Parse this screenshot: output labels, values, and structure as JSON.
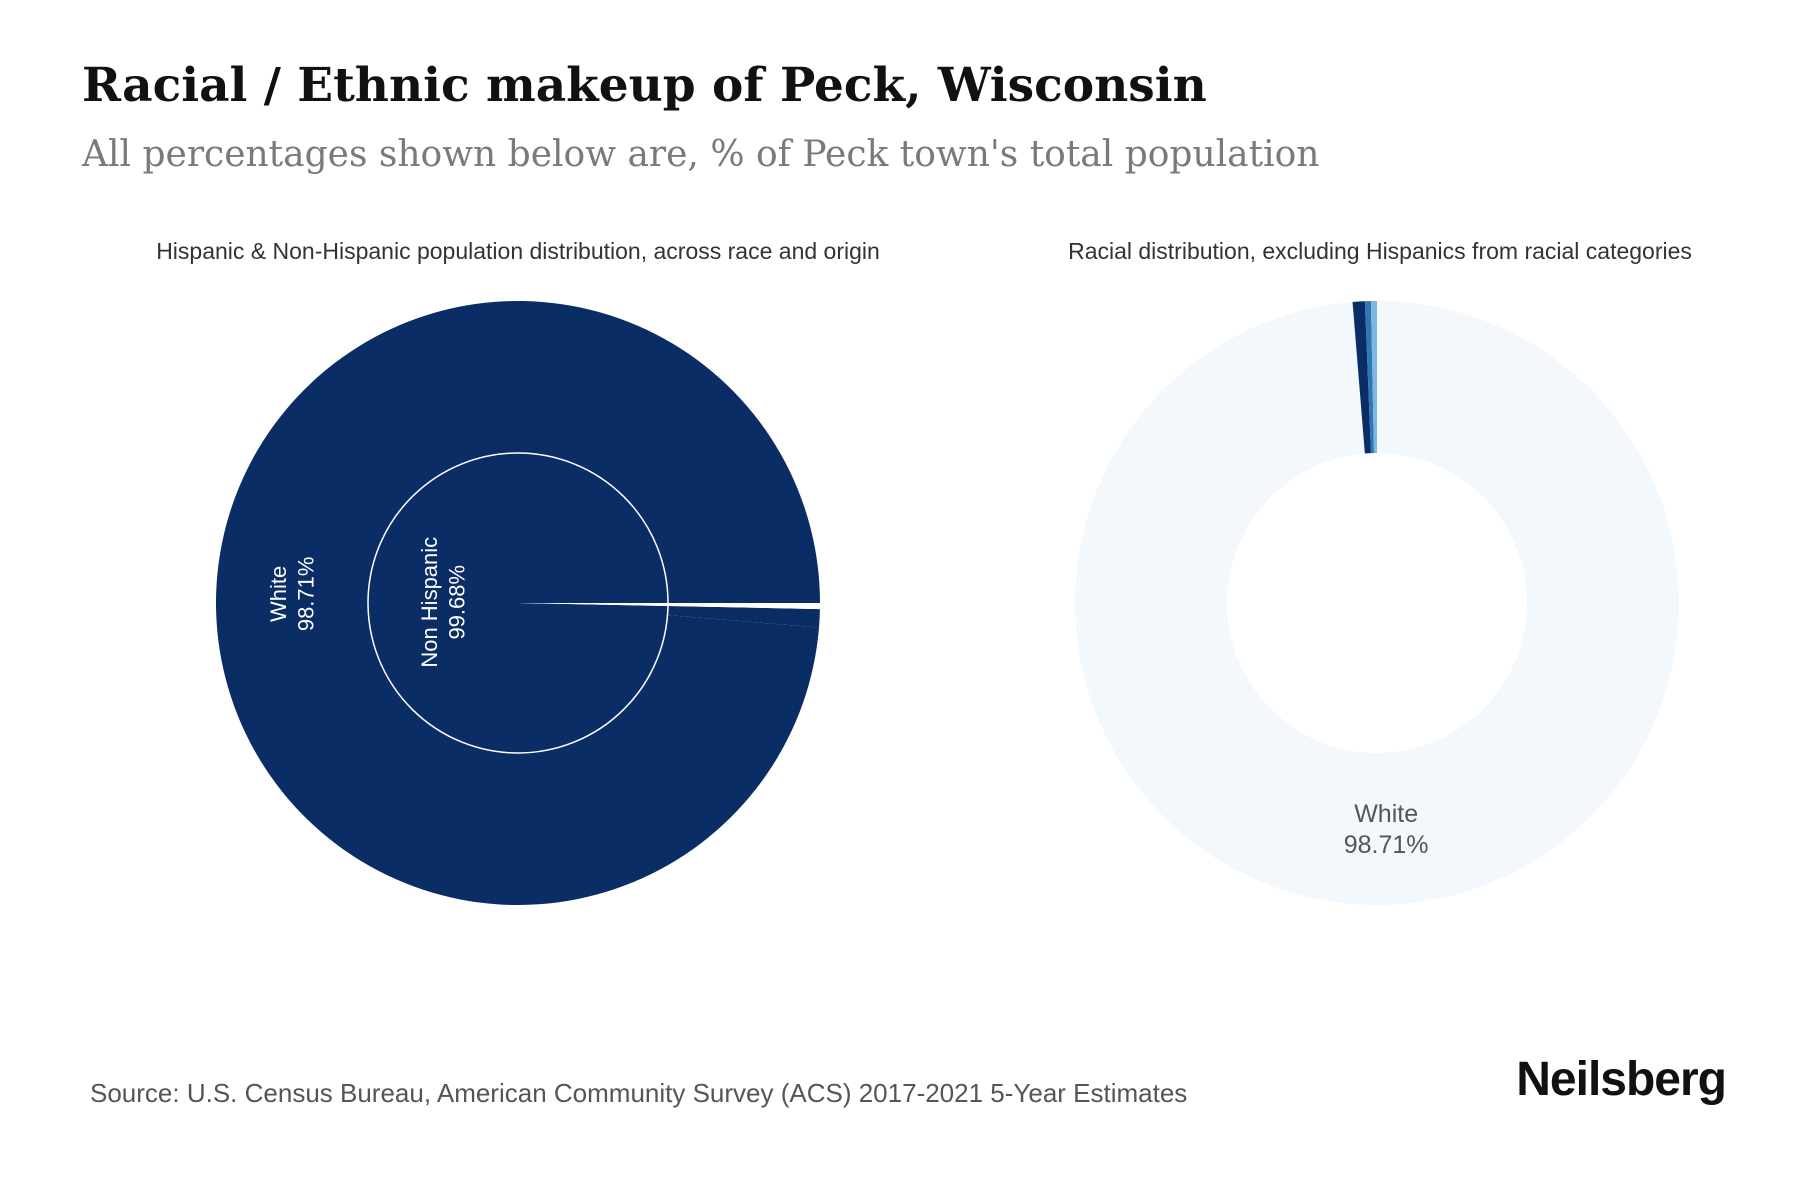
{
  "title": "Racial / Ethnic makeup of Peck, Wisconsin",
  "subtitle": "All percentages shown below are, % of Peck town's total population",
  "source": "Source: U.S. Census Bureau, American Community Survey (ACS) 2017-2021 5-Year Estimates",
  "brand": "Neilsberg",
  "chart_data": [
    {
      "type": "pie",
      "title": "Hispanic & Non-Hispanic population distribution, across race and origin",
      "inner_ring": [
        {
          "label": "Non Hispanic",
          "value": 99.68,
          "display": "99.68%",
          "color": "#0b2d66"
        },
        {
          "label": "",
          "value": 0.32,
          "display": "",
          "color": "#ffffff"
        }
      ],
      "outer_ring": [
        {
          "label": "White",
          "value": 98.71,
          "display": "98.71%",
          "color": "#0b2d66"
        },
        {
          "label": "",
          "value": 0.97,
          "display": "",
          "color": "#0b2d66"
        },
        {
          "label": "",
          "value": 0.32,
          "display": "",
          "color": "#ffffff"
        }
      ]
    },
    {
      "type": "pie",
      "title": "Racial distribution, excluding Hispanics from racial categories",
      "slices": [
        {
          "label": "White",
          "value": 98.71,
          "display": "98.71%",
          "color": "#f3f8fd"
        },
        {
          "label": "",
          "value": 0.65,
          "display": "",
          "color": "#0b2d66"
        },
        {
          "label": "",
          "value": 0.32,
          "display": "",
          "color": "#2f77b5"
        },
        {
          "label": "",
          "value": 0.32,
          "display": "",
          "color": "#7cb8e0"
        }
      ]
    }
  ]
}
